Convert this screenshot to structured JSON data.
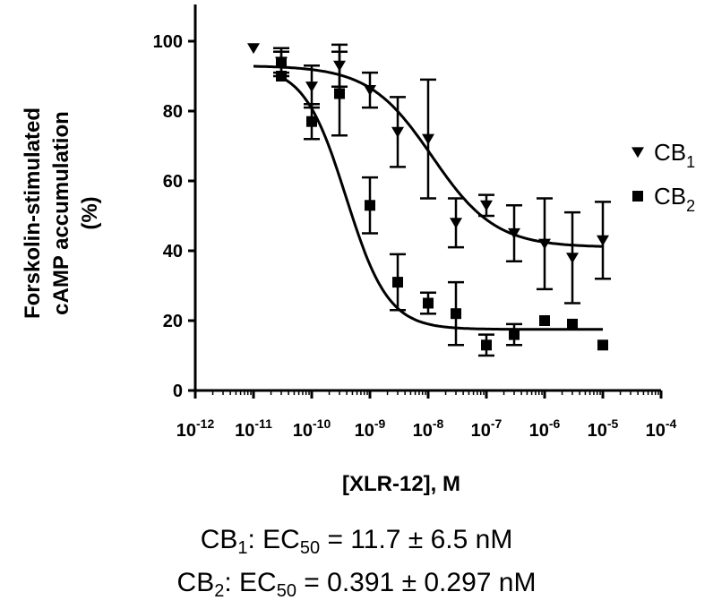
{
  "chart_data": {
    "type": "scatter",
    "xlabel": "[XLR-12], M",
    "ylabel_lines": [
      "Forskolin-stimulated",
      "cAMP accumulation",
      "(%)"
    ],
    "x_scale": "log",
    "xlim": [
      1e-12,
      0.0001
    ],
    "ylim": [
      0,
      110
    ],
    "x_ticks": [
      1e-12,
      1e-11,
      1e-10,
      1e-09,
      1e-08,
      1e-07,
      1e-06,
      1e-05,
      0.0001
    ],
    "x_tick_labels": [
      {
        "base": "10",
        "exp": "-12"
      },
      {
        "base": "10",
        "exp": "-11"
      },
      {
        "base": "10",
        "exp": "-10"
      },
      {
        "base": "10",
        "exp": "-9"
      },
      {
        "base": "10",
        "exp": "-8"
      },
      {
        "base": "10",
        "exp": "-7"
      },
      {
        "base": "10",
        "exp": "-6"
      },
      {
        "base": "10",
        "exp": "-5"
      },
      {
        "base": "10",
        "exp": "-4"
      }
    ],
    "y_ticks": [
      0,
      20,
      40,
      60,
      80,
      100
    ],
    "y_tick_labels": [
      "0",
      "20",
      "40",
      "60",
      "80",
      "100"
    ],
    "grid": false,
    "legend_position": "right",
    "series": [
      {
        "name": "CB",
        "name_sub": "1",
        "marker": "triangle-down",
        "x": [
          1e-11,
          3e-11,
          1e-10,
          3e-10,
          1e-09,
          3e-09,
          1e-08,
          3e-08,
          1e-07,
          3e-07,
          1e-06,
          3e-06,
          1e-05
        ],
        "y": [
          98,
          94,
          87,
          93,
          86,
          74,
          72,
          48,
          53,
          45,
          42,
          38,
          43
        ],
        "err": [
          0,
          3,
          6,
          6,
          5,
          10,
          17,
          7,
          3,
          8,
          13,
          13,
          11
        ],
        "fit": {
          "top": 93,
          "bottom": 41,
          "ec50": 1.17e-08,
          "hill": 0.8
        }
      },
      {
        "name": "CB",
        "name_sub": "2",
        "marker": "square",
        "x": [
          3e-11,
          3e-11,
          1e-10,
          3e-10,
          1e-09,
          3e-09,
          1e-08,
          3e-08,
          1e-07,
          3e-07,
          1e-06,
          3e-06,
          1e-05
        ],
        "y": [
          94,
          90,
          77,
          85,
          53,
          31,
          25,
          22,
          13,
          16,
          20,
          19,
          13
        ],
        "err": [
          4,
          0,
          5,
          12,
          8,
          8,
          3,
          9,
          3,
          3,
          0,
          0,
          0
        ],
        "fit": {
          "top": 93,
          "bottom": 17.5,
          "ec50": 3.91e-10,
          "hill": 1.2
        }
      }
    ]
  },
  "footer": {
    "line1": {
      "main": "CB",
      "sub": "1",
      "rest_a": ": EC",
      "sub2": "50",
      "rest_b": " = 11.7 ± 6.5 nM"
    },
    "line2": {
      "main": "CB",
      "sub": "2",
      "rest_a": ": EC",
      "sub2": "50",
      "rest_b": " = 0.391 ± 0.297 nM"
    }
  }
}
